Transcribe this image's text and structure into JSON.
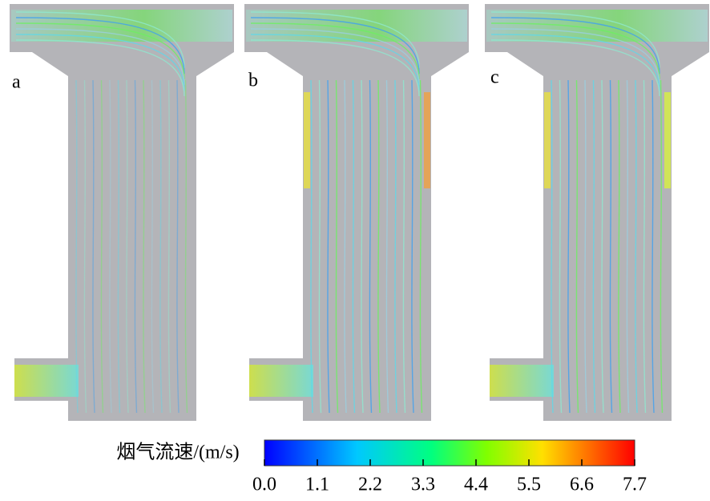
{
  "panels": [
    {
      "label": "a"
    },
    {
      "label": "b"
    },
    {
      "label": "c"
    }
  ],
  "colorbar": {
    "label": "烟气流速/(m/s)",
    "lim": [
      0,
      7.7
    ],
    "ticks": [
      {
        "value": 0,
        "label": "0.0"
      },
      1.1,
      2.2,
      3.3,
      4.4,
      5.5,
      6.6,
      7.7
    ]
  }
}
